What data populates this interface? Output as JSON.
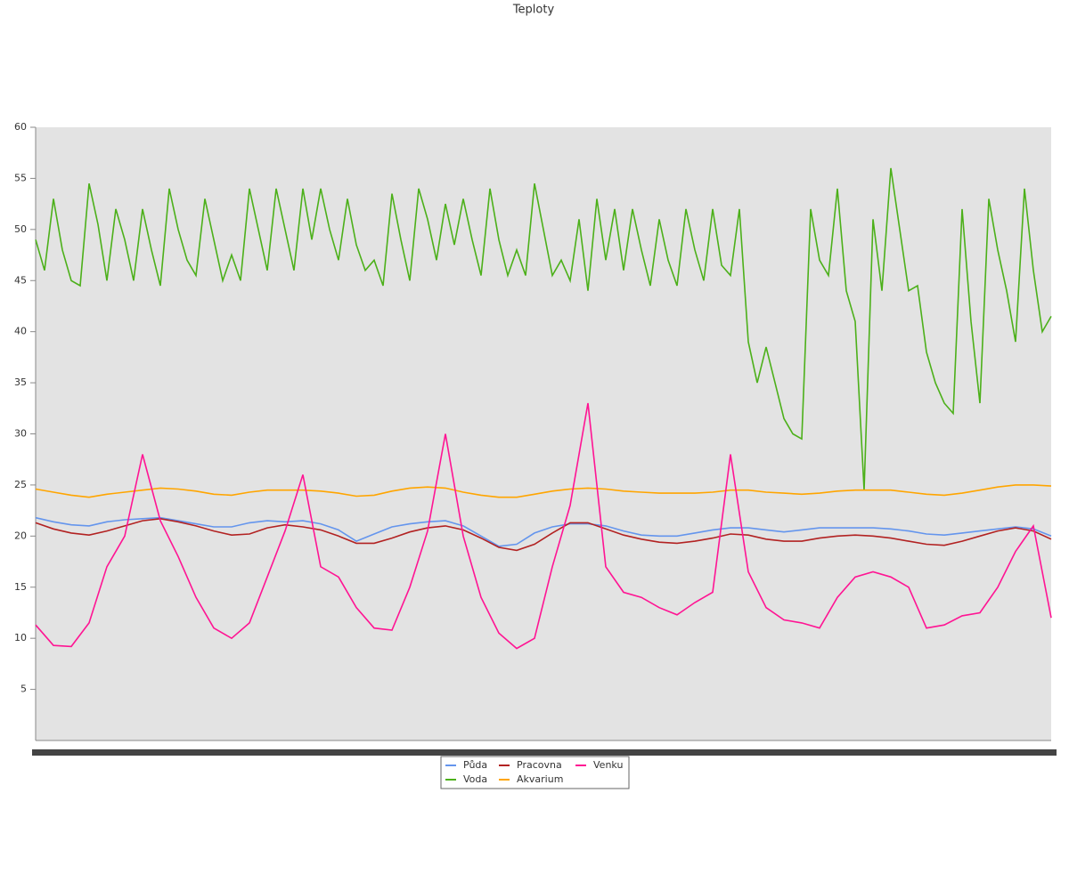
{
  "chart_data": {
    "type": "line",
    "title": "Teploty",
    "ylim": [
      0,
      60
    ],
    "yticks": [
      5,
      10,
      15,
      20,
      25,
      30,
      35,
      40,
      45,
      50,
      55,
      60
    ],
    "series": [
      {
        "name": "Půda",
        "color": "#6495ed",
        "values": [
          21.8,
          21.4,
          21.1,
          21.0,
          21.4,
          21.6,
          21.7,
          21.8,
          21.5,
          21.2,
          20.9,
          20.9,
          21.3,
          21.5,
          21.4,
          21.5,
          21.2,
          20.6,
          19.5,
          20.2,
          20.9,
          21.2,
          21.4,
          21.5,
          21.0,
          20.0,
          19.0,
          19.2,
          20.3,
          20.9,
          21.2,
          21.2,
          21.0,
          20.5,
          20.1,
          20.0,
          20.0,
          20.3,
          20.6,
          20.8,
          20.8,
          20.6,
          20.4,
          20.6,
          20.8,
          20.8,
          20.8,
          20.8,
          20.7,
          20.5,
          20.2,
          20.1,
          20.3,
          20.5,
          20.7,
          20.9,
          20.7,
          20.0
        ]
      },
      {
        "name": "Voda",
        "color": "#4cb01a",
        "values": [
          49,
          46,
          53,
          48,
          45,
          44.5,
          54.5,
          50.5,
          45,
          52,
          49,
          45,
          52,
          48,
          44.5,
          54,
          50,
          47,
          45.5,
          53,
          49,
          45,
          47.5,
          45,
          54,
          50,
          46,
          54,
          50,
          46,
          54,
          49,
          54,
          50,
          47,
          53,
          48.5,
          46,
          47,
          44.5,
          53.5,
          49,
          45,
          54,
          51,
          47,
          52.5,
          48.5,
          53,
          49,
          45.5,
          54,
          49,
          45.5,
          48,
          45.5,
          54.5,
          50,
          45.5,
          47,
          45,
          51,
          44,
          53,
          47,
          52,
          46,
          52,
          48,
          44.5,
          51,
          47,
          44.5,
          52,
          48,
          45,
          52,
          46.5,
          45.5,
          52,
          39,
          35,
          38.5,
          35,
          31.5,
          30,
          29.5,
          52,
          47,
          45.5,
          54,
          44,
          41,
          24.5,
          51,
          44,
          56,
          50,
          44,
          44.5,
          38,
          35,
          33,
          32,
          52,
          41,
          33,
          53,
          48,
          44,
          39,
          54,
          46,
          40,
          41.5
        ]
      },
      {
        "name": "Pracovna",
        "color": "#b22222",
        "values": [
          21.3,
          20.7,
          20.3,
          20.1,
          20.5,
          21.0,
          21.5,
          21.7,
          21.4,
          21.0,
          20.5,
          20.1,
          20.2,
          20.8,
          21.1,
          20.9,
          20.6,
          20.0,
          19.3,
          19.3,
          19.8,
          20.4,
          20.8,
          21.0,
          20.6,
          19.8,
          18.9,
          18.6,
          19.2,
          20.3,
          21.3,
          21.3,
          20.7,
          20.1,
          19.7,
          19.4,
          19.3,
          19.5,
          19.8,
          20.2,
          20.1,
          19.7,
          19.5,
          19.5,
          19.8,
          20.0,
          20.1,
          20.0,
          19.8,
          19.5,
          19.2,
          19.1,
          19.5,
          20.0,
          20.5,
          20.8,
          20.5,
          19.7
        ]
      },
      {
        "name": "Akvarium",
        "color": "#ffa500",
        "values": [
          24.6,
          24.3,
          24.0,
          23.8,
          24.1,
          24.3,
          24.5,
          24.7,
          24.6,
          24.4,
          24.1,
          24.0,
          24.3,
          24.5,
          24.5,
          24.5,
          24.4,
          24.2,
          23.9,
          24.0,
          24.4,
          24.7,
          24.8,
          24.7,
          24.3,
          24.0,
          23.8,
          23.8,
          24.1,
          24.4,
          24.6,
          24.7,
          24.6,
          24.4,
          24.3,
          24.2,
          24.2,
          24.2,
          24.3,
          24.5,
          24.5,
          24.3,
          24.2,
          24.1,
          24.2,
          24.4,
          24.5,
          24.5,
          24.5,
          24.3,
          24.1,
          24.0,
          24.2,
          24.5,
          24.8,
          25.0,
          25.0,
          24.9
        ]
      },
      {
        "name": "Venku",
        "color": "#ff1493",
        "values": [
          11.3,
          9.3,
          9.2,
          11.5,
          17,
          20,
          28,
          21.5,
          18,
          14,
          11,
          10,
          11.5,
          16,
          20.5,
          26,
          17,
          16,
          13,
          11,
          10.8,
          15,
          20.5,
          30,
          20,
          14,
          10.5,
          9.0,
          10,
          17,
          23,
          33,
          17,
          14.5,
          14.0,
          13,
          12.3,
          13.5,
          14.5,
          28,
          16.5,
          13,
          11.8,
          11.5,
          11,
          14,
          16,
          16.5,
          16,
          15,
          11,
          11.3,
          12.2,
          12.5,
          15,
          18.5,
          21,
          12
        ]
      }
    ]
  }
}
